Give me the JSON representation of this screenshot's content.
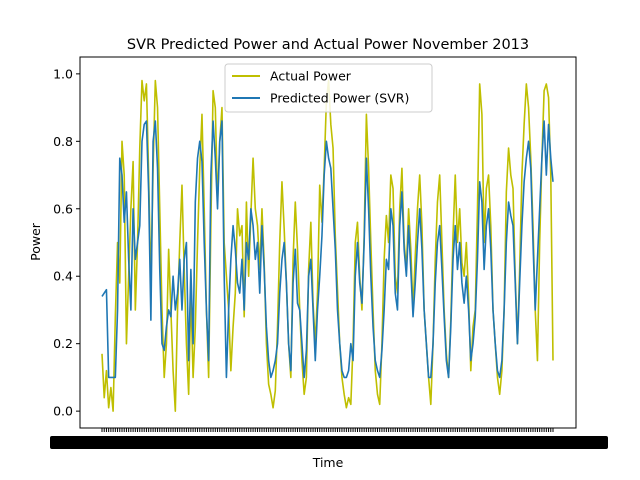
{
  "chart_data": {
    "type": "line",
    "title": "SVR Predicted Power and Actual Power November 2013",
    "xlabel": "Time",
    "ylabel": "Power",
    "ylim": [
      -0.05,
      1.05
    ],
    "yticks": [
      "0.0",
      "0.2",
      "0.4",
      "0.6",
      "0.8",
      "1.0"
    ],
    "x_tick_labels_illegible": true,
    "grid": false,
    "legend_location": "upper-center",
    "series": [
      {
        "name": "Actual Power",
        "color": "#bfbf00",
        "values": [
          0.17,
          0.04,
          0.12,
          0.01,
          0.07,
          0.0,
          0.28,
          0.5,
          0.38,
          0.8,
          0.7,
          0.2,
          0.4,
          0.6,
          0.74,
          0.3,
          0.5,
          0.78,
          0.98,
          0.92,
          0.97,
          0.7,
          0.38,
          0.72,
          0.98,
          0.9,
          0.6,
          0.3,
          0.1,
          0.2,
          0.48,
          0.3,
          0.12,
          0.0,
          0.3,
          0.5,
          0.67,
          0.42,
          0.2,
          0.05,
          0.35,
          0.1,
          0.25,
          0.5,
          0.72,
          0.88,
          0.6,
          0.3,
          0.1,
          0.55,
          0.95,
          0.9,
          0.62,
          0.8,
          0.9,
          0.5,
          0.4,
          0.3,
          0.12,
          0.25,
          0.35,
          0.6,
          0.52,
          0.55,
          0.28,
          0.62,
          0.4,
          0.58,
          0.75,
          0.6,
          0.55,
          0.42,
          0.6,
          0.44,
          0.2,
          0.08,
          0.05,
          0.01,
          0.06,
          0.25,
          0.5,
          0.68,
          0.54,
          0.38,
          0.2,
          0.1,
          0.45,
          0.62,
          0.48,
          0.3,
          0.15,
          0.05,
          0.1,
          0.42,
          0.56,
          0.32,
          0.2,
          0.35,
          0.67,
          0.56,
          0.72,
          0.92,
          0.98,
          0.85,
          0.78,
          0.52,
          0.36,
          0.2,
          0.1,
          0.05,
          0.01,
          0.04,
          0.02,
          0.2,
          0.5,
          0.56,
          0.4,
          0.3,
          0.52,
          0.88,
          0.72,
          0.5,
          0.3,
          0.12,
          0.05,
          0.02,
          0.2,
          0.45,
          0.58,
          0.5,
          0.7,
          0.66,
          0.4,
          0.35,
          0.6,
          0.72,
          0.5,
          0.42,
          0.6,
          0.48,
          0.3,
          0.46,
          0.6,
          0.7,
          0.55,
          0.3,
          0.2,
          0.1,
          0.02,
          0.2,
          0.45,
          0.62,
          0.7,
          0.5,
          0.3,
          0.17,
          0.1,
          0.27,
          0.52,
          0.7,
          0.5,
          0.6,
          0.44,
          0.4,
          0.5,
          0.34,
          0.12,
          0.25,
          0.3,
          0.6,
          0.97,
          0.88,
          0.5,
          0.66,
          0.7,
          0.55,
          0.3,
          0.2,
          0.1,
          0.05,
          0.12,
          0.3,
          0.65,
          0.78,
          0.7,
          0.66,
          0.4,
          0.2,
          0.42,
          0.7,
          0.85,
          0.97,
          0.9,
          0.75,
          0.55,
          0.3,
          0.15,
          0.5,
          0.75,
          0.95,
          0.97,
          0.93,
          0.7,
          0.15
        ]
      },
      {
        "name": "Predicted Power (SVR)",
        "color": "#1f77b4",
        "values": [
          0.34,
          0.35,
          0.36,
          0.1,
          0.1,
          0.1,
          0.1,
          0.3,
          0.75,
          0.7,
          0.56,
          0.65,
          0.45,
          0.3,
          0.6,
          0.45,
          0.5,
          0.55,
          0.8,
          0.85,
          0.86,
          0.65,
          0.27,
          0.8,
          0.86,
          0.72,
          0.42,
          0.2,
          0.18,
          0.25,
          0.3,
          0.28,
          0.4,
          0.3,
          0.35,
          0.45,
          0.3,
          0.45,
          0.5,
          0.15,
          0.42,
          0.2,
          0.62,
          0.75,
          0.8,
          0.74,
          0.5,
          0.3,
          0.15,
          0.7,
          0.86,
          0.75,
          0.6,
          0.8,
          0.86,
          0.4,
          0.1,
          0.3,
          0.45,
          0.55,
          0.48,
          0.38,
          0.35,
          0.45,
          0.3,
          0.5,
          0.45,
          0.6,
          0.55,
          0.45,
          0.5,
          0.35,
          0.55,
          0.42,
          0.25,
          0.15,
          0.1,
          0.12,
          0.15,
          0.2,
          0.35,
          0.45,
          0.5,
          0.38,
          0.2,
          0.12,
          0.38,
          0.48,
          0.32,
          0.3,
          0.2,
          0.1,
          0.18,
          0.4,
          0.45,
          0.3,
          0.15,
          0.3,
          0.4,
          0.52,
          0.7,
          0.8,
          0.75,
          0.72,
          0.6,
          0.48,
          0.3,
          0.2,
          0.12,
          0.1,
          0.1,
          0.12,
          0.2,
          0.15,
          0.4,
          0.5,
          0.38,
          0.32,
          0.5,
          0.75,
          0.6,
          0.4,
          0.25,
          0.15,
          0.12,
          0.1,
          0.18,
          0.3,
          0.45,
          0.42,
          0.6,
          0.55,
          0.35,
          0.3,
          0.55,
          0.65,
          0.48,
          0.4,
          0.55,
          0.42,
          0.28,
          0.38,
          0.5,
          0.6,
          0.48,
          0.3,
          0.2,
          0.1,
          0.1,
          0.2,
          0.38,
          0.5,
          0.55,
          0.42,
          0.28,
          0.15,
          0.1,
          0.25,
          0.45,
          0.55,
          0.42,
          0.5,
          0.38,
          0.32,
          0.4,
          0.3,
          0.15,
          0.2,
          0.28,
          0.45,
          0.68,
          0.62,
          0.42,
          0.55,
          0.6,
          0.48,
          0.3,
          0.2,
          0.12,
          0.1,
          0.15,
          0.3,
          0.5,
          0.62,
          0.58,
          0.55,
          0.38,
          0.2,
          0.38,
          0.55,
          0.68,
          0.75,
          0.8,
          0.72,
          0.5,
          0.3,
          0.45,
          0.6,
          0.75,
          0.86,
          0.7,
          0.85,
          0.75,
          0.68
        ]
      }
    ]
  }
}
